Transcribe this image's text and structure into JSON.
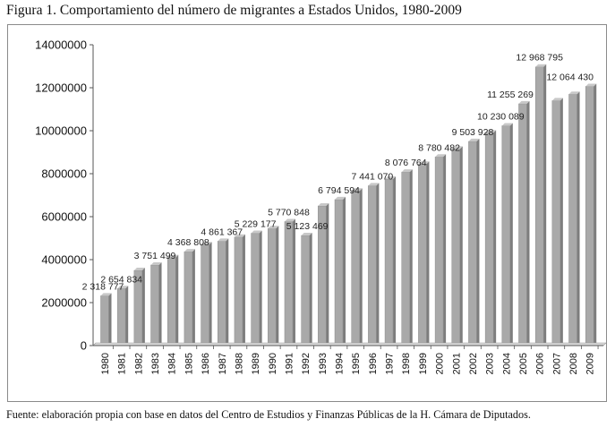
{
  "figure": {
    "title": "Figura 1. Comportamiento del número de migrantes a Estados Unidos, 1980-2009",
    "source": "Fuente: elaboración propia  con base en datos del Centro de Estudios y Finanzas Públicas de la H. Cámara de Diputados."
  },
  "colors": {
    "bar_front": "#a9a9a9",
    "bar_side": "#7d7d7d",
    "bar_top": "#c8c8c8",
    "axis": "#555555"
  },
  "chart_data": {
    "type": "bar",
    "title": "Comportamiento del número de migrantes a Estados Unidos, 1980-2009",
    "xlabel": "",
    "ylabel": "",
    "ylim": [
      0,
      14000000
    ],
    "yticks": [
      0,
      2000000,
      4000000,
      6000000,
      8000000,
      10000000,
      12000000,
      14000000
    ],
    "ytick_labels": [
      "0",
      "2000000",
      "4000000",
      "6000000",
      "8000000",
      "10000000",
      "12000000",
      "14000000"
    ],
    "grid": false,
    "legend": "none",
    "categories": [
      "1980",
      "1981",
      "1982",
      "1983",
      "1984",
      "1985",
      "1986",
      "1987",
      "1988",
      "1989",
      "1990",
      "1991",
      "1992",
      "1993",
      "1994",
      "1995",
      "1996",
      "1997",
      "1998",
      "1999",
      "2000",
      "2001",
      "2002",
      "2003",
      "2004",
      "2005",
      "2006",
      "2007",
      "2008",
      "2009"
    ],
    "values": [
      2318777,
      2654834,
      3500000,
      3751499,
      4100000,
      4368808,
      4700000,
      4861367,
      5050000,
      5229177,
      5450000,
      5770848,
      5123469,
      6500000,
      6794594,
      7200000,
      7441070,
      7750000,
      8076764,
      8450000,
      8780482,
      9150000,
      9503928,
      9900000,
      10230089,
      11255269,
      12968795,
      11400000,
      11700000,
      12064430
    ],
    "data_labels": [
      {
        "category": "1980",
        "text": "2 318 777"
      },
      {
        "category": "1981",
        "text": "2 654 834"
      },
      {
        "category": "1983",
        "text": "3 751 499"
      },
      {
        "category": "1985",
        "text": "4 368 808"
      },
      {
        "category": "1987",
        "text": "4 861 367"
      },
      {
        "category": "1989",
        "text": "5 229 177"
      },
      {
        "category": "1991",
        "text": "5 770 848"
      },
      {
        "category": "1992",
        "text": "5 123 469"
      },
      {
        "category": "1994",
        "text": "6 794 594"
      },
      {
        "category": "1996",
        "text": "7 441 070"
      },
      {
        "category": "1998",
        "text": "8 076 764"
      },
      {
        "category": "2000",
        "text": "8 780 482"
      },
      {
        "category": "2002",
        "text": "9 503 928"
      },
      {
        "category": "2004",
        "text": "10 230 089"
      },
      {
        "category": "2005",
        "text": "11 255 269"
      },
      {
        "category": "2006",
        "text": "12 968 795"
      },
      {
        "category": "2009",
        "text": "12 064 430"
      }
    ]
  }
}
